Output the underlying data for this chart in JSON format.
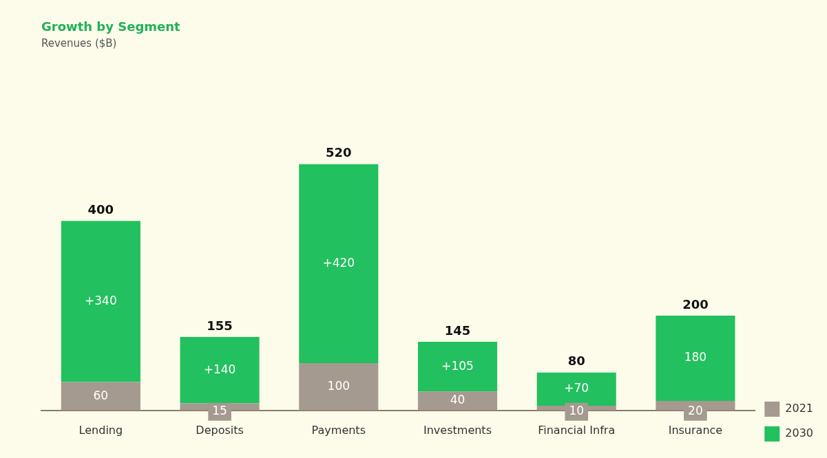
{
  "chart_data": {
    "type": "bar",
    "title": "Growth by Segment",
    "subtitle": "Revenues ($B)",
    "stacked": true,
    "legend": "bottom right",
    "grid": false,
    "categories": [
      "Lending",
      "Deposits",
      "Payments",
      "Investments",
      "Financial Infra",
      "Insurance"
    ],
    "series": [
      {
        "name": "2021",
        "color": "#a59a8f",
        "values": [
          60,
          15,
          100,
          40,
          10,
          20
        ],
        "value_labels": [
          "60",
          "15",
          "100",
          "40",
          "10",
          "20"
        ]
      },
      {
        "name": "2030",
        "color": "#22c05e",
        "values": [
          340,
          140,
          420,
          105,
          70,
          180
        ],
        "value_labels": [
          "+340",
          "+140",
          "+420",
          "+105",
          "+70",
          "180"
        ]
      }
    ],
    "totals": [
      "400",
      "155",
      "520",
      "145",
      "80",
      "200"
    ]
  }
}
